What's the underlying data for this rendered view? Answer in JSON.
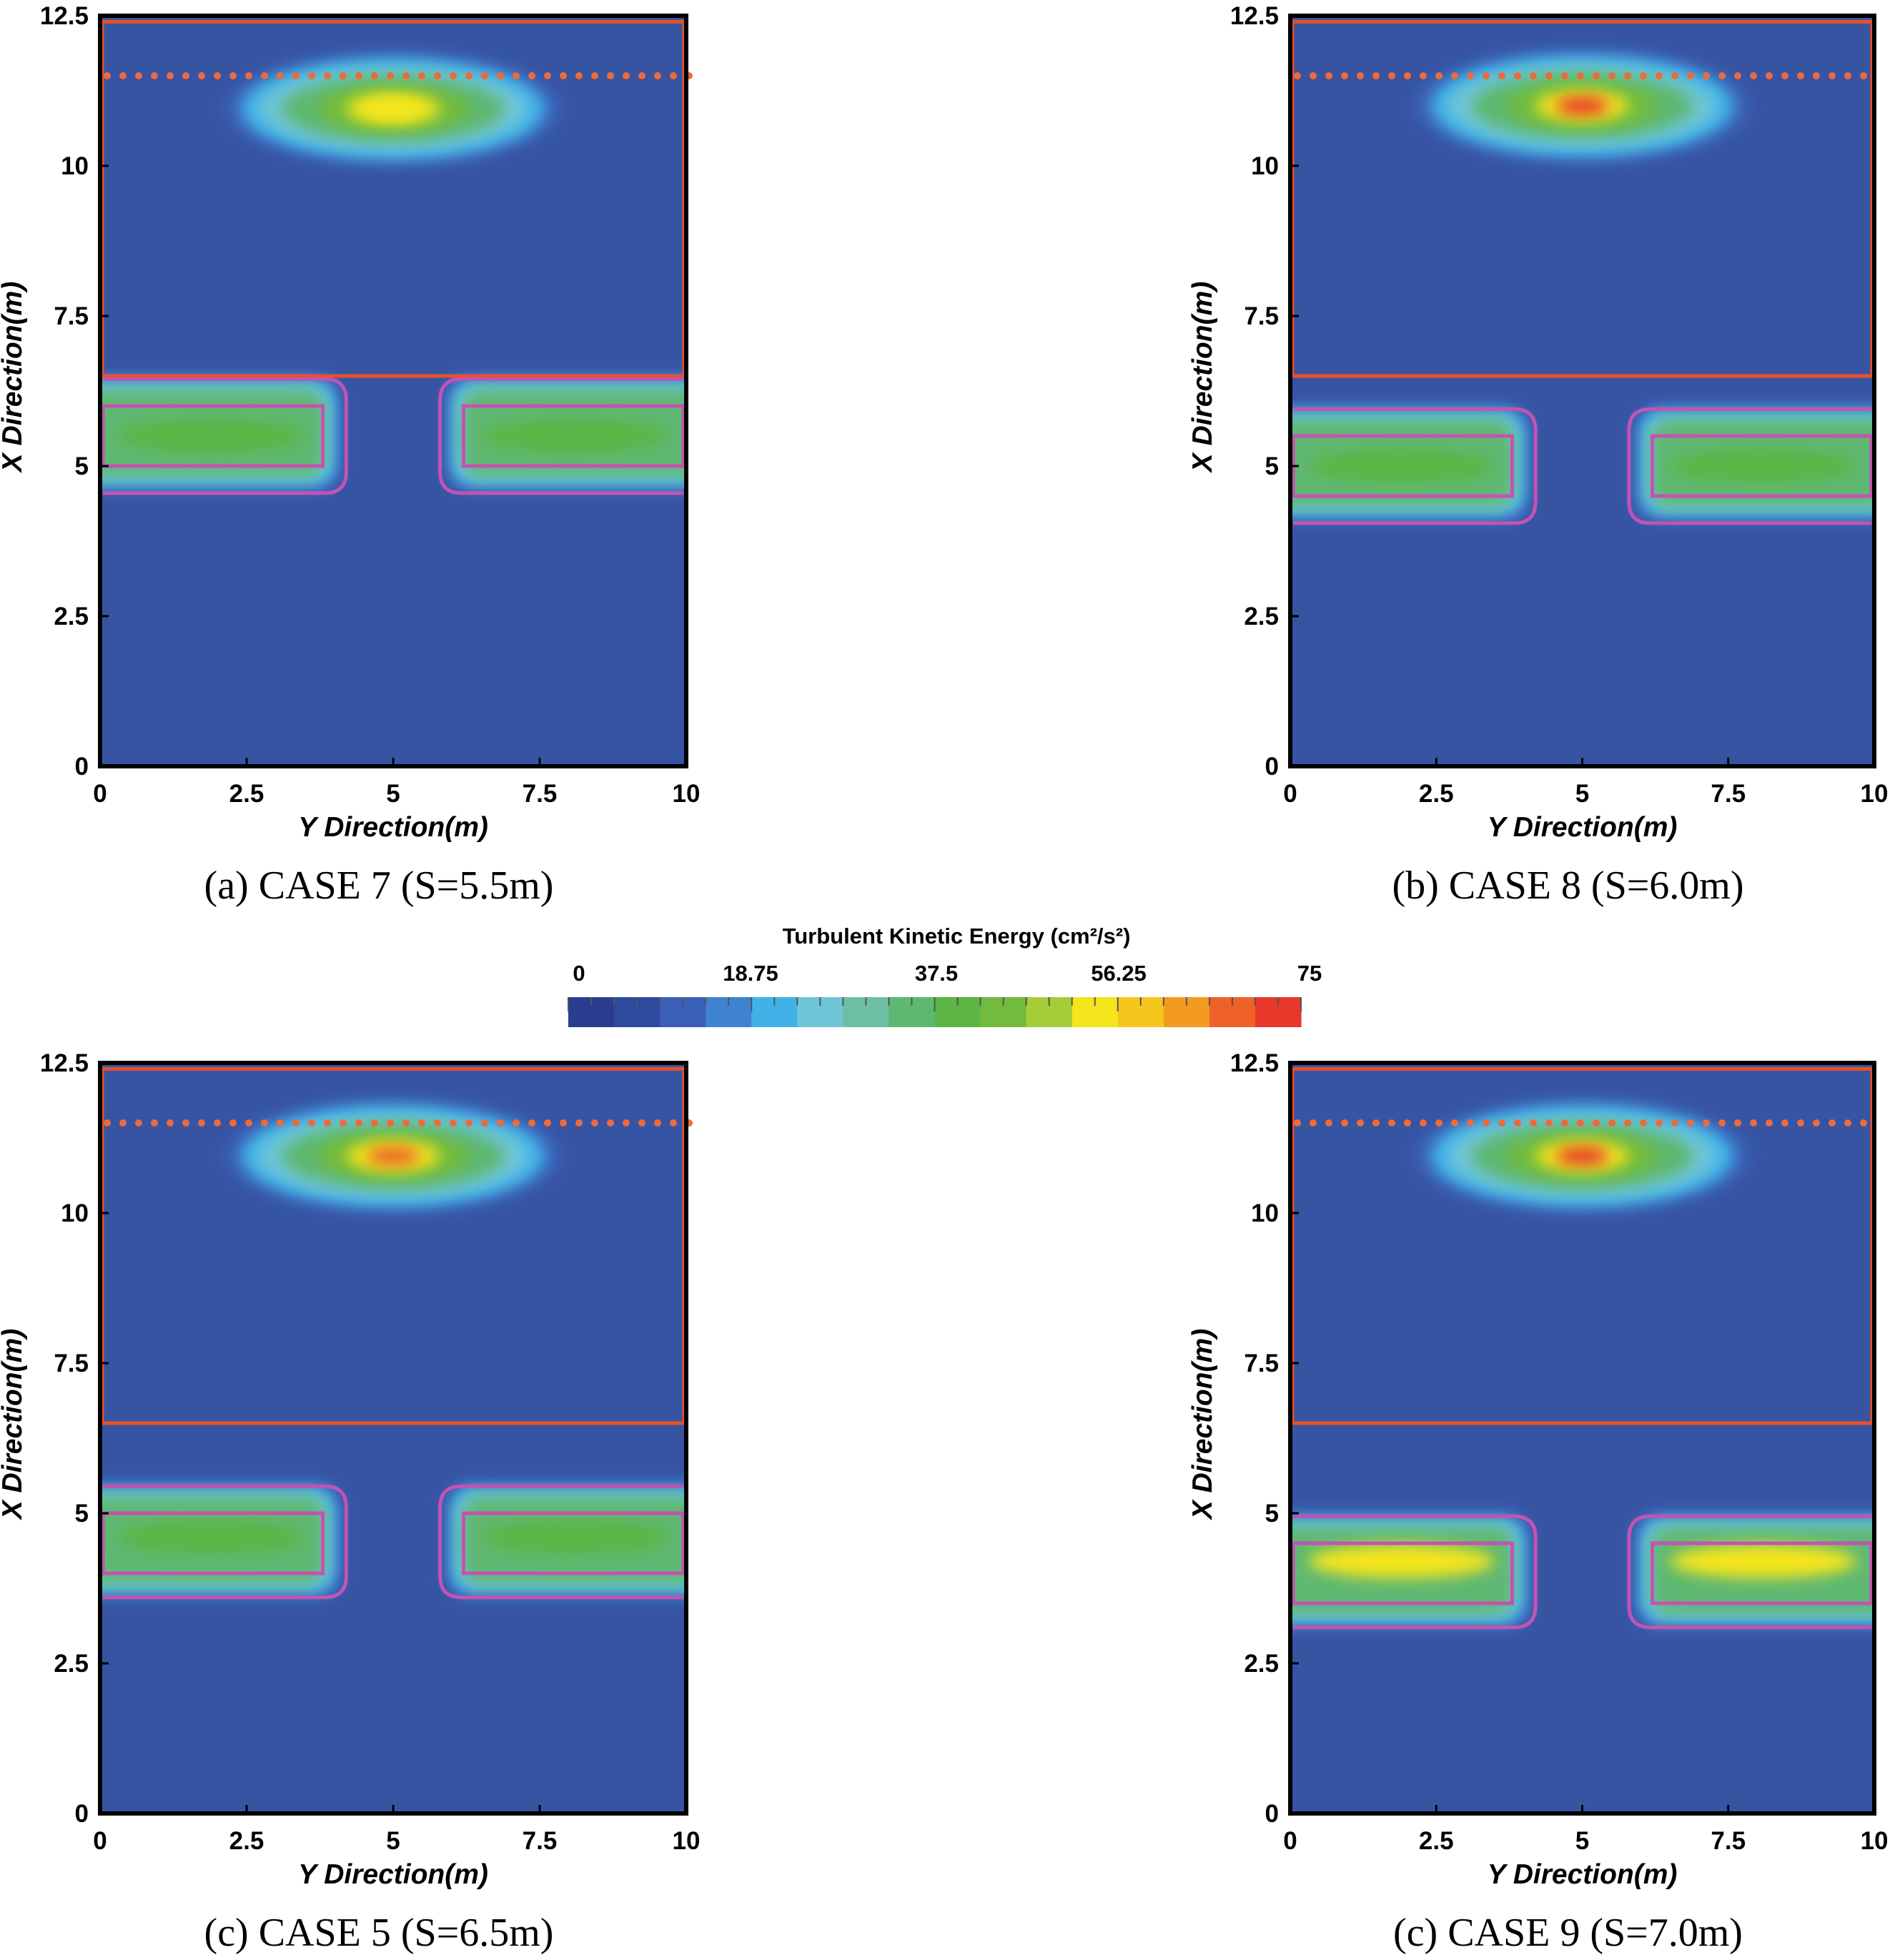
{
  "colors": {
    "background": "#3754a2",
    "frame": "#000000",
    "region_box": "#e8502a",
    "dotted_line": "#ee6a3a",
    "structure": "#c552b2",
    "colormap": [
      "#2b3d8f",
      "#2e4a9e",
      "#3a5fb7",
      "#3f82cf",
      "#41b2e8",
      "#6ec5d8",
      "#6cbfa5",
      "#5fb872",
      "#5cb544",
      "#72bb3e",
      "#a6cc3a",
      "#f4e51c",
      "#f5c71c",
      "#f39a20",
      "#ee6227",
      "#e8372b"
    ]
  },
  "colorbar": {
    "title": "Turbulent Kinetic Energy (cm²/s²)",
    "ticks": [
      "0",
      "18.75",
      "37.5",
      "56.25",
      "75"
    ],
    "range": [
      0,
      75
    ]
  },
  "chart_data": [
    {
      "type": "heatmap",
      "caption": "(a)  CASE  7  (S=5.5m)",
      "xlabel": "Y Direction(m)",
      "ylabel": "X Direction(m)",
      "xlim": [
        0,
        10
      ],
      "ylim": [
        0,
        12.5
      ],
      "xticks": [
        "0",
        "2.5",
        "5",
        "7.5",
        "10"
      ],
      "yticks": [
        "0",
        "2.5",
        "5",
        "7.5",
        "10",
        "12.5"
      ],
      "dotted_line_x": 11.5,
      "region": {
        "y": [
          0,
          10
        ],
        "x": [
          6.5,
          12.4
        ]
      },
      "structures": {
        "x_range": [
          5.0,
          6.0
        ],
        "outer_x_range": [
          4.55,
          6.45
        ],
        "left_y": [
          0,
          3.8
        ],
        "right_y": [
          6.2,
          10
        ]
      },
      "hotspots": [
        {
          "y": 5.0,
          "x": 11.0,
          "value": 56
        },
        {
          "y": 1.9,
          "x": 5.5,
          "value": 40
        },
        {
          "y": 8.1,
          "x": 5.5,
          "value": 42
        }
      ]
    },
    {
      "type": "heatmap",
      "caption": "(b)  CASE  8  (S=6.0m)",
      "xlabel": "Y Direction(m)",
      "ylabel": "X Direction(m)",
      "xlim": [
        0,
        10
      ],
      "ylim": [
        0,
        12.5
      ],
      "xticks": [
        "0",
        "2.5",
        "5",
        "7.5",
        "10"
      ],
      "yticks": [
        "0",
        "2.5",
        "5",
        "7.5",
        "10",
        "12.5"
      ],
      "dotted_line_x": 11.5,
      "region": {
        "y": [
          0,
          10
        ],
        "x": [
          6.5,
          12.4
        ]
      },
      "structures": {
        "x_range": [
          4.5,
          5.5
        ],
        "outer_x_range": [
          4.05,
          5.95
        ],
        "left_y": [
          0,
          3.8
        ],
        "right_y": [
          6.2,
          10
        ]
      },
      "hotspots": [
        {
          "y": 5.0,
          "x": 11.05,
          "value": 72
        },
        {
          "y": 1.9,
          "x": 5.0,
          "value": 42
        },
        {
          "y": 8.1,
          "x": 5.0,
          "value": 42
        }
      ]
    },
    {
      "type": "heatmap",
      "caption": "(c)  CASE  5  (S=6.5m)",
      "xlabel": "Y Direction(m)",
      "ylabel": "X Direction(m)",
      "xlim": [
        0,
        10
      ],
      "ylim": [
        0,
        12.5
      ],
      "xticks": [
        "0",
        "2.5",
        "5",
        "7.5",
        "10"
      ],
      "yticks": [
        "0",
        "2.5",
        "5",
        "7.5",
        "10",
        "12.5"
      ],
      "dotted_line_x": 11.5,
      "region": {
        "y": [
          0,
          10
        ],
        "x": [
          6.5,
          12.4
        ]
      },
      "structures": {
        "x_range": [
          4.0,
          5.0
        ],
        "outer_x_range": [
          3.6,
          5.45
        ],
        "left_y": [
          0,
          3.8
        ],
        "right_y": [
          6.2,
          10
        ]
      },
      "hotspots": [
        {
          "y": 5.0,
          "x": 11.0,
          "value": 68
        },
        {
          "y": 1.9,
          "x": 4.6,
          "value": 42
        },
        {
          "y": 8.1,
          "x": 4.6,
          "value": 42
        }
      ]
    },
    {
      "type": "heatmap",
      "caption": "(c)  CASE  9  (S=7.0m)",
      "xlabel": "Y Direction(m)",
      "ylabel": "X Direction(m)",
      "xlim": [
        0,
        10
      ],
      "ylim": [
        0,
        12.5
      ],
      "xticks": [
        "0",
        "2.5",
        "5",
        "7.5",
        "10"
      ],
      "yticks": [
        "0",
        "2.5",
        "5",
        "7.5",
        "10",
        "12.5"
      ],
      "dotted_line_x": 11.5,
      "region": {
        "y": [
          0,
          10
        ],
        "x": [
          6.5,
          12.4
        ]
      },
      "structures": {
        "x_range": [
          3.5,
          4.5
        ],
        "outer_x_range": [
          3.1,
          4.95
        ],
        "left_y": [
          0,
          3.8
        ],
        "right_y": [
          6.2,
          10
        ]
      },
      "hotspots": [
        {
          "y": 5.0,
          "x": 11.0,
          "value": 72
        },
        {
          "y": 1.9,
          "x": 4.2,
          "value": 54
        },
        {
          "y": 8.1,
          "x": 4.2,
          "value": 54
        }
      ]
    }
  ]
}
